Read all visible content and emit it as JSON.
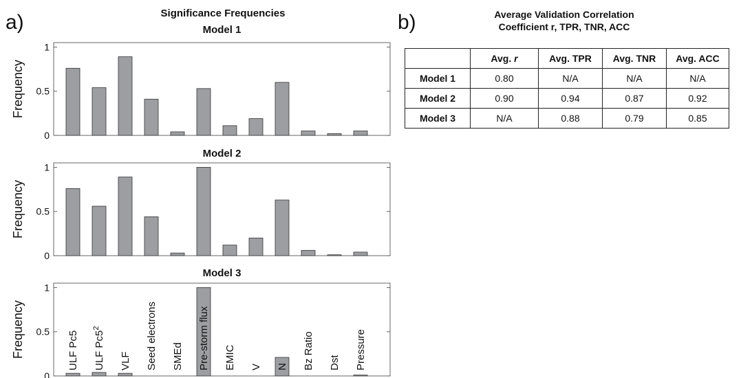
{
  "panel_a": {
    "letter": "a)",
    "title": "Significance Frequencies"
  },
  "panel_b": {
    "letter": "b)",
    "title_lines": [
      "Average Validation Correlation",
      "Coefficient r, TPR, TNR, ACC"
    ]
  },
  "chart_data": [
    {
      "type": "bar",
      "title": "Model 1",
      "ylabel": "Frequency",
      "ylim": [
        0,
        1.05
      ],
      "yticks": [
        "0",
        "0.5",
        "1"
      ],
      "categories": [
        "ULF Pc5",
        "ULF Pc5²",
        "VLF",
        "Seed electrons",
        "SMEd",
        "Pre-storm flux",
        "EMIC",
        "V",
        "N",
        "Bz Ratio",
        "Dst",
        "Pressure"
      ],
      "values": [
        0.76,
        0.54,
        0.89,
        0.41,
        0.04,
        0.53,
        0.11,
        0.19,
        0.6,
        0.05,
        0.02,
        0.05
      ],
      "category_labels_shown": false
    },
    {
      "type": "bar",
      "title": "Model 2",
      "ylabel": "Frequency",
      "ylim": [
        0,
        1.05
      ],
      "yticks": [
        "0",
        "0.5",
        "1"
      ],
      "categories": [
        "ULF Pc5",
        "ULF Pc5²",
        "VLF",
        "Seed electrons",
        "SMEd",
        "Pre-storm flux",
        "EMIC",
        "V",
        "N",
        "Bz Ratio",
        "Dst",
        "Pressure"
      ],
      "values": [
        0.76,
        0.56,
        0.89,
        0.44,
        0.03,
        1.0,
        0.12,
        0.2,
        0.63,
        0.06,
        0.01,
        0.04
      ],
      "category_labels_shown": false
    },
    {
      "type": "bar",
      "title": "Model 3",
      "ylabel": "Frequency",
      "ylim": [
        0,
        1.05
      ],
      "yticks": [
        "0",
        "0.5",
        "1"
      ],
      "categories": [
        "ULF Pc5",
        "ULF Pc5²",
        "VLF",
        "Seed electrons",
        "SMEd",
        "Pre-storm flux",
        "EMIC",
        "V",
        "N",
        "Bz Ratio",
        "Dst",
        "Pressure"
      ],
      "values": [
        0.03,
        0.04,
        0.03,
        0.0,
        0.0,
        1.0,
        0.0,
        0.0,
        0.21,
        0.0,
        0.0,
        0.01
      ],
      "category_labels_shown": true
    },
    {
      "type": "table",
      "columns": [
        "",
        "Avg. r",
        "Avg. TPR",
        "Avg. TNR",
        "Avg. ACC"
      ],
      "rows": [
        {
          "label": "Model 1",
          "values": [
            "0.80",
            "N/A",
            "N/A",
            "N/A"
          ]
        },
        {
          "label": "Model 2",
          "values": [
            "0.90",
            "0.94",
            "0.87",
            "0.92"
          ]
        },
        {
          "label": "Model 3",
          "values": [
            "N/A",
            "0.88",
            "0.79",
            "0.85"
          ]
        }
      ]
    }
  ]
}
